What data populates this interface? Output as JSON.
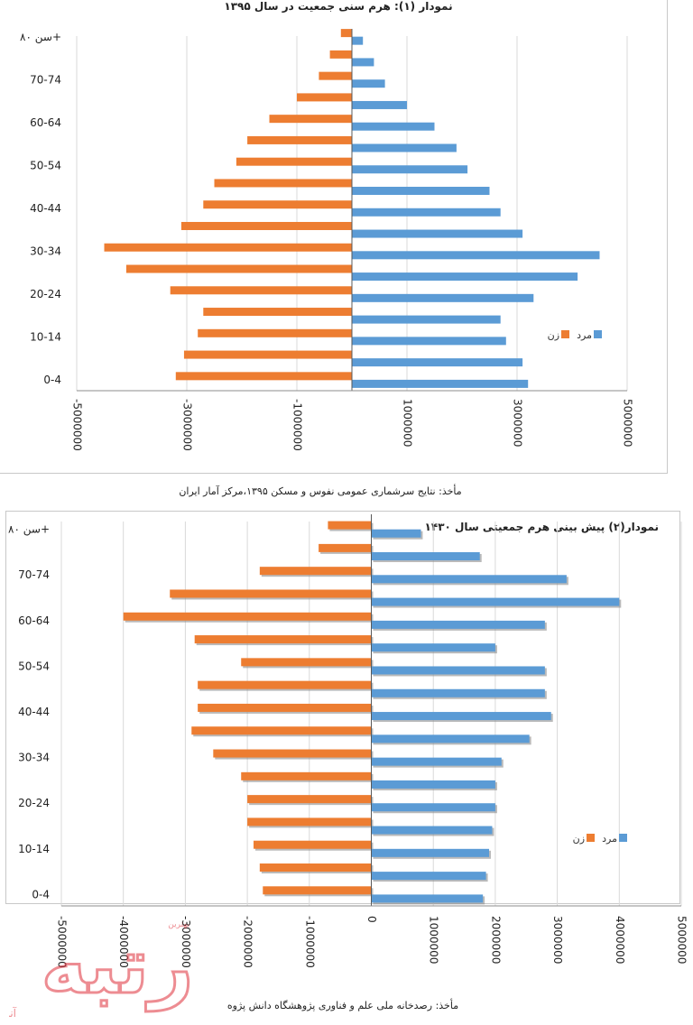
{
  "chart_data": [
    {
      "type": "bar",
      "orientation": "horizontal",
      "title": "نمودار (۱): هرم سنی جمعیت در سال ۱۳۹۵",
      "source": "مأخذ: نتایج سرشماری عمومی نفوس و مسکن ۱۳۹۵،مرکز آمار ایران",
      "categories": [
        "0-4",
        "5-9",
        "10-14",
        "15-19",
        "20-24",
        "25-29",
        "30-34",
        "35-39",
        "40-44",
        "45-49",
        "50-54",
        "55-59",
        "60-64",
        "65-69",
        "70-74",
        "75-79",
        "سن ۸۰+"
      ],
      "y_tick_labels": [
        "0-4",
        "10-14",
        "20-24",
        "30-34",
        "40-44",
        "50-54",
        "60-64",
        "70-74",
        "سن ۸۰+"
      ],
      "x_tick_labels": [
        "-5000000",
        "-3000000",
        "-1000000",
        "1000000",
        "3000000",
        "5000000"
      ],
      "xlim": [
        -5000000,
        5000000
      ],
      "legend_placement": "bottom-right",
      "grid": "vertical",
      "series": [
        {
          "name": "مرد",
          "color": "#5b9bd5",
          "values": [
            3200000,
            3100000,
            2800000,
            2700000,
            3300000,
            4100000,
            4500000,
            3100000,
            2700000,
            2500000,
            2100000,
            1900000,
            1500000,
            1000000,
            600000,
            400000,
            200000
          ]
        },
        {
          "name": "زن",
          "color": "#ed7d31",
          "values": [
            -3200000,
            -3050000,
            -2800000,
            -2700000,
            -3300000,
            -4100000,
            -4500000,
            -3100000,
            -2700000,
            -2500000,
            -2100000,
            -1900000,
            -1500000,
            -1000000,
            -600000,
            -400000,
            -200000
          ]
        }
      ]
    },
    {
      "type": "bar",
      "orientation": "horizontal",
      "title": "نمودار(۲) پیش بینی هرم جمعیتی سال ۱۴۳۰",
      "source": "مأخذ: رصدخانه ملی علم و فناوری پژوهشگاه دانش پژوه",
      "categories": [
        "0-4",
        "5-9",
        "10-14",
        "15-19",
        "20-24",
        "25-29",
        "30-34",
        "35-39",
        "40-44",
        "45-49",
        "50-54",
        "55-59",
        "60-64",
        "65-69",
        "70-74",
        "75-79",
        "سن ۸۰+"
      ],
      "y_tick_labels": [
        "0-4",
        "10-14",
        "20-24",
        "30-34",
        "40-44",
        "50-54",
        "60-64",
        "70-74",
        "سن ۸۰+"
      ],
      "x_tick_labels": [
        "-5000000",
        "-4000000",
        "-3000000",
        "-2000000",
        "-1000000",
        "0",
        "1000000",
        "2000000",
        "3000000",
        "4000000",
        "5000000"
      ],
      "xlim": [
        -5000000,
        5000000
      ],
      "legend_placement": "bottom-right",
      "grid": "vertical",
      "series": [
        {
          "name": "مرد",
          "color": "#5b9bd5",
          "values": [
            1800000,
            1850000,
            1900000,
            1950000,
            2000000,
            2000000,
            2100000,
            2550000,
            2900000,
            2800000,
            2800000,
            2000000,
            2800000,
            4000000,
            3150000,
            1750000,
            800000
          ]
        },
        {
          "name": "زن",
          "color": "#ed7d31",
          "values": [
            -1750000,
            -1800000,
            -1900000,
            -2000000,
            -2000000,
            -2100000,
            -2550000,
            -2900000,
            -2800000,
            -2800000,
            -2100000,
            -2850000,
            -4000000,
            -3250000,
            -1800000,
            -850000,
            -700000
          ]
        }
      ]
    }
  ],
  "watermark": {
    "main_text": "رتبه",
    "small_text_left": "آنلاین",
    "small_text_top": "بهترین"
  }
}
